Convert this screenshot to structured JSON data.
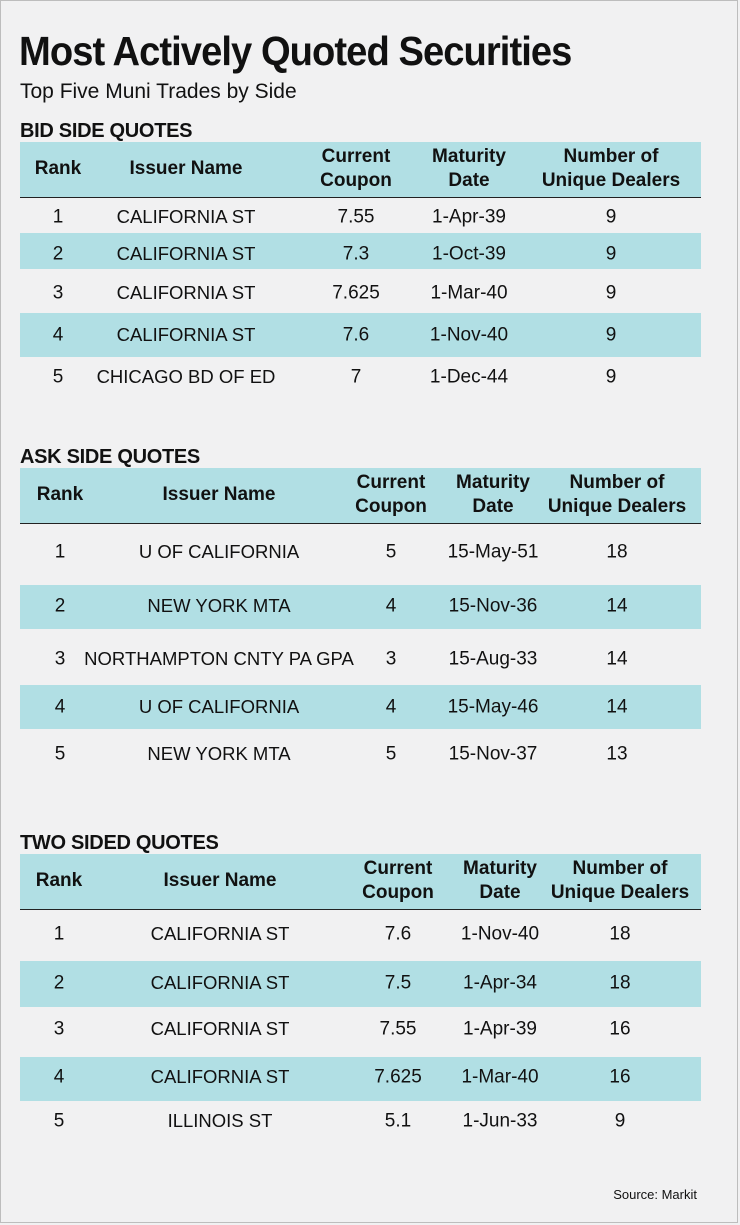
{
  "title": "Most Actively Quoted Securities",
  "subtitle": "Top Five Muni Trades by Side",
  "colors": {
    "header_band": "#b1dfe4",
    "background": "#f1f1f2"
  },
  "source": "Source: Markit",
  "columns": {
    "rank": "Rank",
    "issuer": "Issuer Name",
    "coupon_line1": "Current",
    "coupon_line2": "Coupon",
    "maturity_line1": "Maturity",
    "maturity_line2": "Date",
    "dealers_line1": "Number of",
    "dealers_line2": "Unique Dealers"
  },
  "chart_data": {
    "type": "table",
    "sections": [
      {
        "title": "BID SIDE QUOTES",
        "rows": [
          {
            "rank": "1",
            "issuer": "CALIFORNIA ST",
            "coupon": "7.55",
            "maturity": "1-Apr-39",
            "dealers": "9"
          },
          {
            "rank": "2",
            "issuer": "CALIFORNIA ST",
            "coupon": "7.3",
            "maturity": "1-Oct-39",
            "dealers": "9"
          },
          {
            "rank": "3",
            "issuer": "CALIFORNIA ST",
            "coupon": "7.625",
            "maturity": "1-Mar-40",
            "dealers": "9"
          },
          {
            "rank": "4",
            "issuer": "CALIFORNIA ST",
            "coupon": "7.6",
            "maturity": "1-Nov-40",
            "dealers": "9"
          },
          {
            "rank": "5",
            "issuer": "CHICAGO BD OF ED",
            "coupon": "7",
            "maturity": "1-Dec-44",
            "dealers": "9"
          }
        ]
      },
      {
        "title": "ASK SIDE QUOTES",
        "rows": [
          {
            "rank": "1",
            "issuer": "U OF CALIFORNIA",
            "coupon": "5",
            "maturity": "15-May-51",
            "dealers": "18"
          },
          {
            "rank": "2",
            "issuer": "NEW YORK MTA",
            "coupon": "4",
            "maturity": "15-Nov-36",
            "dealers": "14"
          },
          {
            "rank": "3",
            "issuer": "NORTHAMPTON CNTY PA GPA",
            "coupon": "3",
            "maturity": "15-Aug-33",
            "dealers": "14"
          },
          {
            "rank": "4",
            "issuer": "U OF CALIFORNIA",
            "coupon": "4",
            "maturity": "15-May-46",
            "dealers": "14"
          },
          {
            "rank": "5",
            "issuer": "NEW YORK MTA",
            "coupon": "5",
            "maturity": "15-Nov-37",
            "dealers": "13"
          }
        ]
      },
      {
        "title": "TWO SIDED QUOTES",
        "rows": [
          {
            "rank": "1",
            "issuer": "CALIFORNIA ST",
            "coupon": "7.6",
            "maturity": "1-Nov-40",
            "dealers": "18"
          },
          {
            "rank": "2",
            "issuer": "CALIFORNIA ST",
            "coupon": "7.5",
            "maturity": "1-Apr-34",
            "dealers": "18"
          },
          {
            "rank": "3",
            "issuer": "CALIFORNIA ST",
            "coupon": "7.55",
            "maturity": "1-Apr-39",
            "dealers": "16"
          },
          {
            "rank": "4",
            "issuer": "CALIFORNIA ST",
            "coupon": "7.625",
            "maturity": "1-Mar-40",
            "dealers": "16"
          },
          {
            "rank": "5",
            "issuer": "ILLINOIS ST",
            "coupon": "5.1",
            "maturity": "1-Jun-33",
            "dealers": "9"
          }
        ]
      }
    ]
  }
}
